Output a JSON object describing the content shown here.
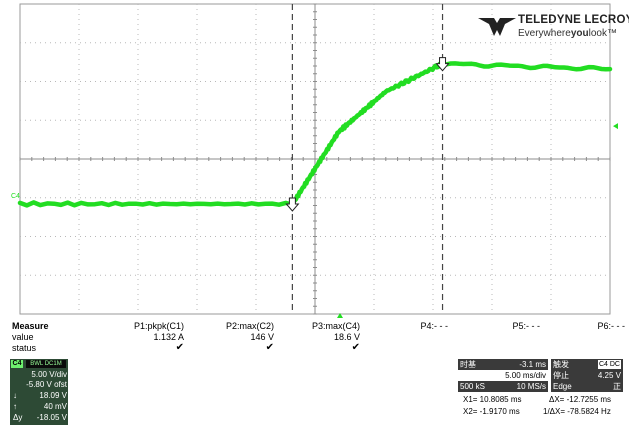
{
  "brand": {
    "name": "TELEDYNE LECROY",
    "tagline_pre": "Everywhere",
    "tagline_bold": "you",
    "tagline_post": "look",
    "trademark": "™"
  },
  "display": {
    "channel_marker": "C4",
    "trace_color": "#22dd22",
    "grid_color": "#b8b8b8",
    "cursor_color": "#444444"
  },
  "chart_data": {
    "type": "line",
    "xlabel": "",
    "ylabel": "",
    "xlim": [
      -25,
      25
    ],
    "ylim": [
      -20,
      20
    ],
    "x_unit": "ms",
    "y_unit": "V",
    "grid": true,
    "series": [
      {
        "name": "",
        "color": "#22dd22",
        "x": [
          -25,
          -1.9,
          2.0,
          6.0,
          10.8,
          25
        ],
        "y": [
          -5.8,
          -5.8,
          3.5,
          8.7,
          12.3,
          11.6
        ]
      }
    ],
    "cursors_x": [
      -1.917,
      10.8085
    ]
  },
  "measure": {
    "header": "Measure",
    "rows": [
      "value",
      "status"
    ],
    "params": [
      {
        "name": "P1:pkpk(C1)",
        "value": "1.132 A",
        "ok": "✔"
      },
      {
        "name": "P2:max(C2)",
        "value": "146 V",
        "ok": "✔"
      },
      {
        "name": "P3:max(C4)",
        "value": "18.6 V",
        "ok": "✔"
      },
      {
        "name": "P4:- - -",
        "value": "",
        "ok": ""
      },
      {
        "name": "P5:- - -",
        "value": "",
        "ok": ""
      },
      {
        "name": "P6:- - -",
        "value": "",
        "ok": ""
      }
    ]
  },
  "channel_panel": {
    "badge": "C4",
    "coupling": "BWL DC1M",
    "scale": "5.00 V/div",
    "offset": "-5.80 V ofst",
    "down_sym": "↓",
    "down_val": "18.09 V",
    "up_sym": "↑",
    "up_val": "40 mV",
    "dy_sym": "Δy",
    "dy_val": "-18.05 V"
  },
  "timebase": {
    "title": "时基",
    "delay": "-3.1 ms",
    "div": "5.00 ms/div",
    "samples": "500 kS",
    "rate": "10 MS/s"
  },
  "trigger": {
    "title": "触发",
    "badge": "C4 DC",
    "mode": "停止",
    "level": "4.25 V",
    "type": "Edge",
    "slope": "正"
  },
  "cursors": {
    "x1": "X1= 10.8085 ms",
    "x2": "X2= -1.9170 ms",
    "dx": "ΔX= -12.7255 ms",
    "inv_dx": "1/ΔX= -78.5824 Hz"
  }
}
